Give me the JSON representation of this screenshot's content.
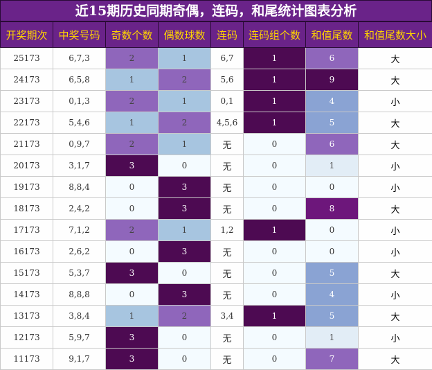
{
  "title": "近15期历史同期奇偶，连码，和尾统计图表分析",
  "headers": [
    "开奖期次",
    "中奖号码",
    "奇数个数",
    "偶数球数",
    "连码",
    "连码组个数",
    "和值尾数",
    "和值尾数大小"
  ],
  "colors": {
    "header_bg": "#6a2389",
    "header_text": "#ffd400",
    "c1": "#a7c5e0",
    "c2": "#8f66bb",
    "c3": "#4d0a52",
    "zero": "#f4fbff",
    "tail_light": "#e2edf6",
    "tail_mid": "#8aa3d3",
    "tail_purple": "#8f66bb",
    "tail_deep": "#6d177b",
    "tail_dark": "#4d0a52"
  },
  "chart_data": {
    "type": "table",
    "columns": [
      "开奖期次",
      "中奖号码",
      "奇数个数",
      "偶数球数",
      "连码",
      "连码组个数",
      "和值尾数",
      "和值尾数大小"
    ],
    "rows": [
      {
        "period": "25173",
        "numbers": "6,7,3",
        "odd": 2,
        "even": 1,
        "consecutive": "6,7",
        "groups": 1,
        "tail": 6,
        "size": "大"
      },
      {
        "period": "24173",
        "numbers": "6,5,8",
        "odd": 1,
        "even": 2,
        "consecutive": "5,6",
        "groups": 1,
        "tail": 9,
        "size": "大"
      },
      {
        "period": "23173",
        "numbers": "0,1,3",
        "odd": 2,
        "even": 1,
        "consecutive": "0,1",
        "groups": 1,
        "tail": 4,
        "size": "小"
      },
      {
        "period": "22173",
        "numbers": "5,4,6",
        "odd": 1,
        "even": 2,
        "consecutive": "4,5,6",
        "groups": 1,
        "tail": 5,
        "size": "大"
      },
      {
        "period": "21173",
        "numbers": "0,9,7",
        "odd": 2,
        "even": 1,
        "consecutive": "无",
        "groups": 0,
        "tail": 6,
        "size": "大"
      },
      {
        "period": "20173",
        "numbers": "3,1,7",
        "odd": 3,
        "even": 0,
        "consecutive": "无",
        "groups": 0,
        "tail": 1,
        "size": "小"
      },
      {
        "period": "19173",
        "numbers": "8,8,4",
        "odd": 0,
        "even": 3,
        "consecutive": "无",
        "groups": 0,
        "tail": 0,
        "size": "小"
      },
      {
        "period": "18173",
        "numbers": "2,4,2",
        "odd": 0,
        "even": 3,
        "consecutive": "无",
        "groups": 0,
        "tail": 8,
        "size": "大"
      },
      {
        "period": "17173",
        "numbers": "7,1,2",
        "odd": 2,
        "even": 1,
        "consecutive": "1,2",
        "groups": 1,
        "tail": 0,
        "size": "小"
      },
      {
        "period": "16173",
        "numbers": "2,6,2",
        "odd": 0,
        "even": 3,
        "consecutive": "无",
        "groups": 0,
        "tail": 0,
        "size": "小"
      },
      {
        "period": "15173",
        "numbers": "5,3,7",
        "odd": 3,
        "even": 0,
        "consecutive": "无",
        "groups": 0,
        "tail": 5,
        "size": "大"
      },
      {
        "period": "14173",
        "numbers": "8,8,8",
        "odd": 0,
        "even": 3,
        "consecutive": "无",
        "groups": 0,
        "tail": 4,
        "size": "小"
      },
      {
        "period": "13173",
        "numbers": "3,8,4",
        "odd": 1,
        "even": 2,
        "consecutive": "3,4",
        "groups": 1,
        "tail": 5,
        "size": "大"
      },
      {
        "period": "12173",
        "numbers": "5,9,7",
        "odd": 3,
        "even": 0,
        "consecutive": "无",
        "groups": 0,
        "tail": 1,
        "size": "小"
      },
      {
        "period": "11173",
        "numbers": "9,1,7",
        "odd": 3,
        "even": 0,
        "consecutive": "无",
        "groups": 0,
        "tail": 7,
        "size": "大"
      }
    ]
  }
}
